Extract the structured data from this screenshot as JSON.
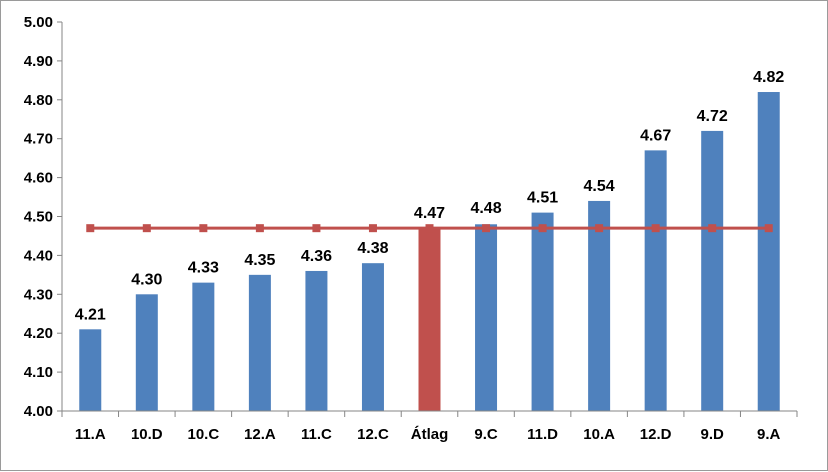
{
  "chart_data": {
    "type": "bar",
    "title": "",
    "xlabel": "",
    "ylabel": "",
    "categories": [
      "11.A",
      "10.D",
      "10.C",
      "12.A",
      "11.C",
      "12.C",
      "Átlag",
      "9.C",
      "11.D",
      "10.A",
      "12.D",
      "9.D",
      "9.A"
    ],
    "values": [
      4.21,
      4.3,
      4.33,
      4.35,
      4.36,
      4.38,
      4.47,
      4.48,
      4.51,
      4.54,
      4.67,
      4.72,
      4.82
    ],
    "value_labels": [
      "4.21",
      "4.30",
      "4.33",
      "4.35",
      "4.36",
      "4.38",
      "4.47",
      "4.48",
      "4.51",
      "4.54",
      "4.67",
      "4.72",
      "4.82"
    ],
    "highlight_category": "Átlag",
    "reference_line": {
      "value": 4.47
    },
    "ylim": [
      4.0,
      5.0
    ],
    "yticks": [
      "4.00",
      "4.10",
      "4.20",
      "4.30",
      "4.40",
      "4.50",
      "4.60",
      "4.70",
      "4.80",
      "4.90",
      "5.00"
    ],
    "grid": false,
    "legend": "none",
    "colors": {
      "bar": "#4F81BD",
      "highlight_bar": "#C0504D",
      "reference_line": "#C0504D",
      "axis": "#868686"
    }
  }
}
